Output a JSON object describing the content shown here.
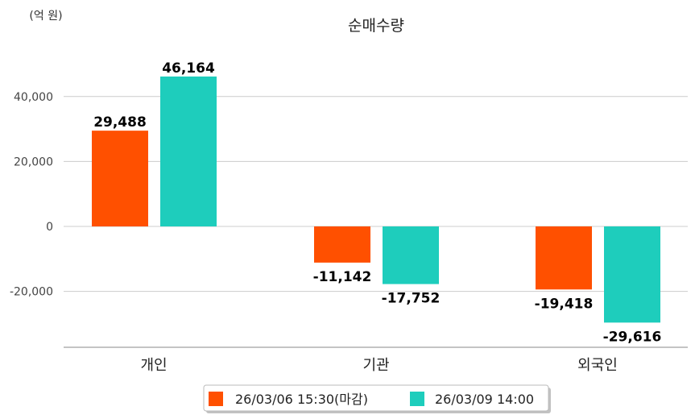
{
  "chart_data": {
    "type": "bar",
    "title": "순매수량",
    "unit_label": "(억 원)",
    "xlabel": "",
    "ylabel": "",
    "categories": [
      "개인",
      "기관",
      "외국인"
    ],
    "series": [
      {
        "name": "26/03/06 15:30(마감)",
        "color": "#ff5000",
        "values": [
          29488,
          -11142,
          -19418
        ],
        "labels": [
          "29,488",
          "-11,142",
          "-19,418"
        ]
      },
      {
        "name": "26/03/09 14:00",
        "color": "#1ecdbc",
        "values": [
          46164,
          -17752,
          -29616
        ],
        "labels": [
          "46,164",
          "-17,752",
          "-29,616"
        ]
      }
    ],
    "yticks": [
      40000,
      20000,
      0,
      -20000
    ],
    "ytick_labels": [
      "40,000",
      "20,000",
      "0",
      "-20,000"
    ],
    "ylim": [
      -37000,
      55000
    ],
    "grid": true,
    "legend_position": "bottom"
  }
}
